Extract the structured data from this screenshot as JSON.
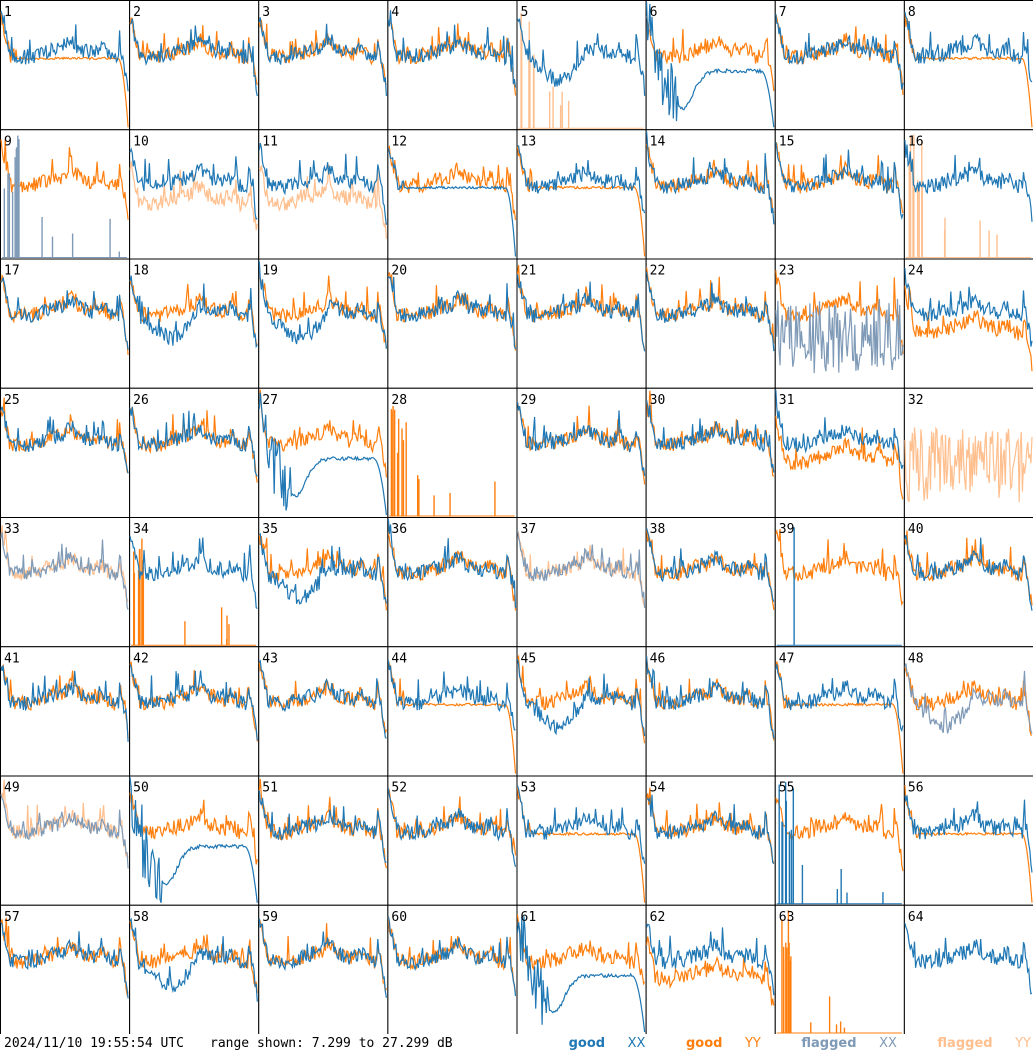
{
  "footer": {
    "timestamp": "2024/11/10 19:55:54 UTC",
    "range_text": "range shown: 7.299 to 27.299 dB"
  },
  "legend": {
    "good_xx": {
      "word": "good",
      "pol": "XX"
    },
    "good_yy": {
      "word": "good",
      "pol": "YY"
    },
    "flagged_xx": {
      "word": "flagged",
      "pol": "XX"
    },
    "flagged_yy": {
      "word": "flagged",
      "pol": "YY"
    }
  },
  "colors": {
    "good_xx": "#1f77b4",
    "good_yy": "#ff7f0e",
    "flagged_xx": "#7f9ab7",
    "flagged_yy": "#ffbf8e",
    "grid": "#000000",
    "background": "#ffffff"
  },
  "chart_data": {
    "type": "line",
    "layout": "8x8 small multiples",
    "ylim": [
      7.299,
      27.299
    ],
    "yunit": "dB",
    "panels": [
      {
        "id": "1",
        "xx": "good",
        "yy": "good",
        "xx_shape": "normal",
        "yy_shape": "dropoff"
      },
      {
        "id": "2",
        "xx": "good",
        "yy": "good",
        "xx_shape": "normal",
        "yy_shape": "normal"
      },
      {
        "id": "3",
        "xx": "good",
        "yy": "good",
        "xx_shape": "normal",
        "yy_shape": "normal"
      },
      {
        "id": "4",
        "xx": "good",
        "yy": "good",
        "xx_shape": "normal",
        "yy_shape": "normal"
      },
      {
        "id": "5",
        "xx": "good",
        "yy": "flagged",
        "xx_shape": "dip",
        "yy_shape": "spikes"
      },
      {
        "id": "6",
        "xx": "good",
        "yy": "good",
        "xx_shape": "bigdip",
        "yy_shape": "normal"
      },
      {
        "id": "7",
        "xx": "good",
        "yy": "good",
        "xx_shape": "normal",
        "yy_shape": "normal"
      },
      {
        "id": "8",
        "xx": "good",
        "yy": "good",
        "xx_shape": "normal",
        "yy_shape": "dropoff"
      },
      {
        "id": "9",
        "xx": "flagged",
        "yy": "good",
        "xx_shape": "spikes",
        "yy_shape": "normal"
      },
      {
        "id": "10",
        "xx": "good",
        "yy": "flagged",
        "xx_shape": "normal",
        "yy_shape": "low"
      },
      {
        "id": "11",
        "xx": "good",
        "yy": "flagged",
        "xx_shape": "normal",
        "yy_shape": "low"
      },
      {
        "id": "12",
        "xx": "good",
        "yy": "good",
        "xx_shape": "dropoff",
        "yy_shape": "normal"
      },
      {
        "id": "13",
        "xx": "good",
        "yy": "good",
        "xx_shape": "normal",
        "yy_shape": "dropoff"
      },
      {
        "id": "14",
        "xx": "good",
        "yy": "good",
        "xx_shape": "normal",
        "yy_shape": "normal"
      },
      {
        "id": "15",
        "xx": "good",
        "yy": "good",
        "xx_shape": "normal",
        "yy_shape": "normal"
      },
      {
        "id": "16",
        "xx": "good",
        "yy": "flagged",
        "xx_shape": "normal",
        "yy_shape": "spikes"
      },
      {
        "id": "17",
        "xx": "good",
        "yy": "good",
        "xx_shape": "normal",
        "yy_shape": "normal"
      },
      {
        "id": "18",
        "xx": "good",
        "yy": "good",
        "xx_shape": "dip",
        "yy_shape": "normal"
      },
      {
        "id": "19",
        "xx": "good",
        "yy": "good",
        "xx_shape": "dip",
        "yy_shape": "normal"
      },
      {
        "id": "20",
        "xx": "good",
        "yy": "good",
        "xx_shape": "normal",
        "yy_shape": "normal"
      },
      {
        "id": "21",
        "xx": "good",
        "yy": "good",
        "xx_shape": "normal",
        "yy_shape": "normal"
      },
      {
        "id": "22",
        "xx": "good",
        "yy": "good",
        "xx_shape": "normal",
        "yy_shape": "normal"
      },
      {
        "id": "23",
        "xx": "flagged",
        "yy": "good",
        "xx_shape": "noise",
        "yy_shape": "normal"
      },
      {
        "id": "24",
        "xx": "good",
        "yy": "good",
        "xx_shape": "normal",
        "yy_shape": "low"
      },
      {
        "id": "25",
        "xx": "good",
        "yy": "good",
        "xx_shape": "normal",
        "yy_shape": "normal"
      },
      {
        "id": "26",
        "xx": "good",
        "yy": "good",
        "xx_shape": "normal",
        "yy_shape": "normal"
      },
      {
        "id": "27",
        "xx": "good",
        "yy": "good",
        "xx_shape": "bigdip",
        "yy_shape": "normal"
      },
      {
        "id": "28",
        "xx": "good",
        "yy": "good",
        "xx_shape": "none",
        "yy_shape": "spikes"
      },
      {
        "id": "29",
        "xx": "good",
        "yy": "good",
        "xx_shape": "normal",
        "yy_shape": "normal"
      },
      {
        "id": "30",
        "xx": "good",
        "yy": "good",
        "xx_shape": "normal",
        "yy_shape": "normal"
      },
      {
        "id": "31",
        "xx": "good",
        "yy": "good",
        "xx_shape": "normal",
        "yy_shape": "low"
      },
      {
        "id": "32",
        "xx": "good",
        "yy": "flagged",
        "xx_shape": "none",
        "yy_shape": "noise"
      },
      {
        "id": "33",
        "xx": "flagged",
        "yy": "flagged",
        "xx_shape": "normal",
        "yy_shape": "normal"
      },
      {
        "id": "34",
        "xx": "good",
        "yy": "good",
        "xx_shape": "normal",
        "yy_shape": "spikes"
      },
      {
        "id": "35",
        "xx": "good",
        "yy": "good",
        "xx_shape": "dip",
        "yy_shape": "normal"
      },
      {
        "id": "36",
        "xx": "good",
        "yy": "good",
        "xx_shape": "normal",
        "yy_shape": "normal"
      },
      {
        "id": "37",
        "xx": "flagged",
        "yy": "flagged",
        "xx_shape": "normal",
        "yy_shape": "normal"
      },
      {
        "id": "38",
        "xx": "good",
        "yy": "good",
        "xx_shape": "normal",
        "yy_shape": "normal"
      },
      {
        "id": "39",
        "xx": "good",
        "yy": "good",
        "xx_shape": "spike",
        "yy_shape": "normal"
      },
      {
        "id": "40",
        "xx": "good",
        "yy": "good",
        "xx_shape": "normal",
        "yy_shape": "normal"
      },
      {
        "id": "41",
        "xx": "good",
        "yy": "good",
        "xx_shape": "normal",
        "yy_shape": "normal"
      },
      {
        "id": "42",
        "xx": "good",
        "yy": "good",
        "xx_shape": "normal",
        "yy_shape": "normal"
      },
      {
        "id": "43",
        "xx": "good",
        "yy": "good",
        "xx_shape": "normal",
        "yy_shape": "normal"
      },
      {
        "id": "44",
        "xx": "good",
        "yy": "good",
        "xx_shape": "normal",
        "yy_shape": "dropoff"
      },
      {
        "id": "45",
        "xx": "good",
        "yy": "good",
        "xx_shape": "dip",
        "yy_shape": "normal"
      },
      {
        "id": "46",
        "xx": "good",
        "yy": "good",
        "xx_shape": "normal",
        "yy_shape": "normal"
      },
      {
        "id": "47",
        "xx": "good",
        "yy": "good",
        "xx_shape": "normal",
        "yy_shape": "dropoff"
      },
      {
        "id": "48",
        "xx": "flagged",
        "yy": "good",
        "xx_shape": "dip",
        "yy_shape": "normal"
      },
      {
        "id": "49",
        "xx": "flagged",
        "yy": "flagged",
        "xx_shape": "normal",
        "yy_shape": "normal"
      },
      {
        "id": "50",
        "xx": "good",
        "yy": "good",
        "xx_shape": "bigdip",
        "yy_shape": "normal"
      },
      {
        "id": "51",
        "xx": "good",
        "yy": "good",
        "xx_shape": "normal",
        "yy_shape": "normal"
      },
      {
        "id": "52",
        "xx": "good",
        "yy": "good",
        "xx_shape": "normal",
        "yy_shape": "normal"
      },
      {
        "id": "53",
        "xx": "good",
        "yy": "good",
        "xx_shape": "normal",
        "yy_shape": "dropoff"
      },
      {
        "id": "54",
        "xx": "good",
        "yy": "good",
        "xx_shape": "normal",
        "yy_shape": "normal"
      },
      {
        "id": "55",
        "xx": "good",
        "yy": "good",
        "xx_shape": "spikes",
        "yy_shape": "normal"
      },
      {
        "id": "56",
        "xx": "good",
        "yy": "good",
        "xx_shape": "normal",
        "yy_shape": "dropoff"
      },
      {
        "id": "57",
        "xx": "good",
        "yy": "good",
        "xx_shape": "normal",
        "yy_shape": "normal"
      },
      {
        "id": "58",
        "xx": "good",
        "yy": "good",
        "xx_shape": "dip",
        "yy_shape": "normal"
      },
      {
        "id": "59",
        "xx": "good",
        "yy": "good",
        "xx_shape": "normal",
        "yy_shape": "normal"
      },
      {
        "id": "60",
        "xx": "good",
        "yy": "good",
        "xx_shape": "normal",
        "yy_shape": "normal"
      },
      {
        "id": "61",
        "xx": "good",
        "yy": "good",
        "xx_shape": "bigdip",
        "yy_shape": "normal"
      },
      {
        "id": "62",
        "xx": "good",
        "yy": "good",
        "xx_shape": "normal",
        "yy_shape": "low"
      },
      {
        "id": "63",
        "xx": "good",
        "yy": "good",
        "xx_shape": "none",
        "yy_shape": "spikes"
      },
      {
        "id": "64",
        "xx": "good",
        "yy": "good",
        "xx_shape": "normal",
        "yy_shape": "none"
      }
    ]
  }
}
